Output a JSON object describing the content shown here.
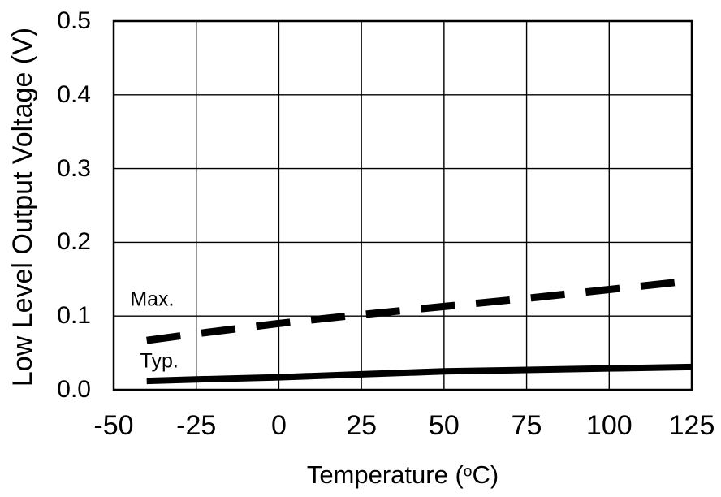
{
  "figure": {
    "background": "#ffffff",
    "line_color": "#000000"
  },
  "chart_data": {
    "type": "line",
    "title": "",
    "xlabel": "Temperature (°C)",
    "xlabel_parts": {
      "prefix": "Temperature (",
      "degree_symbol": "o",
      "suffix": "C)"
    },
    "ylabel": "Low Level Output Voltage (V)",
    "xlim": [
      -50,
      125
    ],
    "ylim": [
      0.0,
      0.5
    ],
    "x_ticks": [
      -50,
      -25,
      0,
      25,
      50,
      75,
      100,
      125
    ],
    "x_tick_labels": [
      "-50",
      "-25",
      "0",
      "25",
      "50",
      "75",
      "100",
      "125"
    ],
    "y_ticks": [
      0.0,
      0.1,
      0.2,
      0.3,
      0.4,
      0.5
    ],
    "y_tick_labels": [
      "0.0",
      "0.1",
      "0.2",
      "0.3",
      "0.4",
      "0.5"
    ],
    "grid": true,
    "legend_position": "inline-annotations",
    "x": [
      -40,
      -25,
      0,
      25,
      50,
      75,
      100,
      125
    ],
    "series": [
      {
        "name": "Max.",
        "line_style": "dashed",
        "values": [
          0.067,
          0.076,
          0.09,
          0.102,
          0.113,
          0.124,
          0.136,
          0.148
        ]
      },
      {
        "name": "Typ.",
        "line_style": "solid",
        "values": [
          0.012,
          0.014,
          0.017,
          0.021,
          0.025,
          0.027,
          0.029,
          0.031
        ]
      }
    ],
    "annotations": [
      {
        "text": "Max.",
        "x": -45,
        "y": 0.122
      },
      {
        "text": "Typ.",
        "x": -42,
        "y": 0.039
      }
    ]
  }
}
